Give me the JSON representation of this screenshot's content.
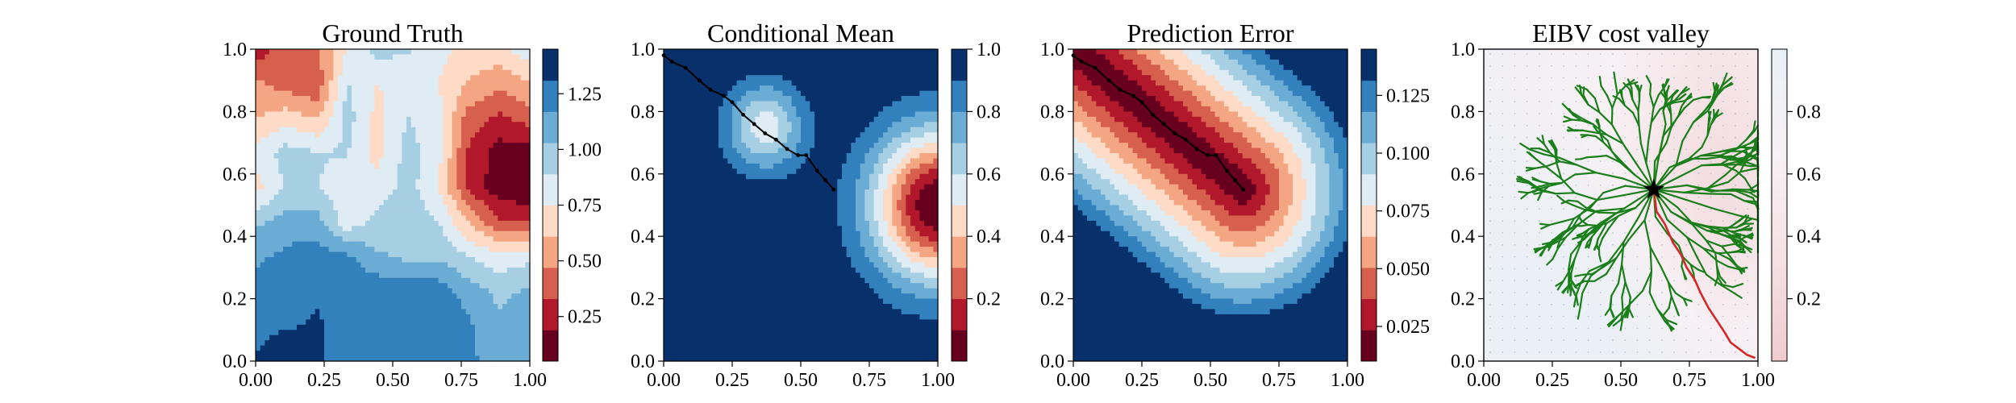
{
  "chart_data": [
    {
      "type": "heatmap",
      "title": "Ground Truth",
      "xlim": [
        0,
        1
      ],
      "ylim": [
        0,
        1
      ],
      "xticks": [
        "0.00",
        "0.25",
        "0.50",
        "0.75",
        "1.00"
      ],
      "yticks": [
        "0.0",
        "0.2",
        "0.4",
        "0.6",
        "0.8",
        "1.0"
      ],
      "colormap": "RdBu",
      "field_levels": [
        [
          0.22,
          0.45,
          0.45,
          0.75,
          0.95,
          0.9,
          0.8,
          0.7,
          0.72,
          0.85
        ],
        [
          0.5,
          0.4,
          0.35,
          0.9,
          0.75,
          0.8,
          0.75,
          0.6,
          0.5,
          0.6
        ],
        [
          0.6,
          0.7,
          0.6,
          0.95,
          0.7,
          0.9,
          0.8,
          0.4,
          0.3,
          0.4
        ],
        [
          0.8,
          0.95,
          0.9,
          0.9,
          0.7,
          0.95,
          0.8,
          0.3,
          0.12,
          0.1
        ],
        [
          0.7,
          0.9,
          0.9,
          0.8,
          0.8,
          0.95,
          0.75,
          0.3,
          0.1,
          0.05
        ],
        [
          1.0,
          1.1,
          1.1,
          0.8,
          0.95,
          1.0,
          0.9,
          0.6,
          0.35,
          0.35
        ],
        [
          1.15,
          1.2,
          1.25,
          1.2,
          1.05,
          1.0,
          1.0,
          0.9,
          0.8,
          0.85
        ],
        [
          1.2,
          1.25,
          1.3,
          1.3,
          1.28,
          1.3,
          1.25,
          1.1,
          1.0,
          1.05
        ],
        [
          1.25,
          1.3,
          1.32,
          1.28,
          1.25,
          1.3,
          1.3,
          1.2,
          1.05,
          1.1
        ],
        [
          1.32,
          1.45,
          1.35,
          1.2,
          1.3,
          1.3,
          1.3,
          1.2,
          1.1,
          1.1
        ]
      ],
      "colorbar": {
        "min": 0.05,
        "max": 1.45,
        "ticks": [
          "0.25",
          "0.50",
          "0.75",
          "1.00",
          "1.25"
        ],
        "tick_values": [
          0.25,
          0.5,
          0.75,
          1.0,
          1.25
        ]
      }
    },
    {
      "type": "heatmap",
      "title": "Conditional Mean",
      "xlim": [
        0,
        1
      ],
      "ylim": [
        0,
        1
      ],
      "xticks": [
        "0.00",
        "0.25",
        "0.50",
        "0.75",
        "1.00"
      ],
      "yticks": [
        "0.0",
        "0.2",
        "0.4",
        "0.6",
        "0.8",
        "1.0"
      ],
      "colormap": "RdBu",
      "bumps": [
        {
          "center": [
            0.37,
            0.75
          ],
          "sigma": 0.1,
          "depth": 0.45
        },
        {
          "center": [
            1.0,
            0.5
          ],
          "sigma": 0.17,
          "depth": 1.0
        }
      ],
      "background_value": 1.0,
      "path": {
        "x": [
          0.0,
          0.03,
          0.08,
          0.13,
          0.17,
          0.22,
          0.25,
          0.29,
          0.33,
          0.37,
          0.41,
          0.45,
          0.49,
          0.52,
          0.56,
          0.59,
          0.62
        ],
        "y": [
          0.98,
          0.96,
          0.94,
          0.9,
          0.87,
          0.85,
          0.83,
          0.79,
          0.76,
          0.73,
          0.71,
          0.68,
          0.66,
          0.66,
          0.61,
          0.58,
          0.55
        ]
      },
      "colorbar": {
        "min": 0.0,
        "max": 1.0,
        "ticks": [
          "0.2",
          "0.4",
          "0.6",
          "0.8",
          "1.0"
        ],
        "tick_values": [
          0.2,
          0.4,
          0.6,
          0.8,
          1.0
        ]
      }
    },
    {
      "type": "heatmap",
      "title": "Prediction Error",
      "xlim": [
        0,
        1
      ],
      "ylim": [
        0,
        1
      ],
      "xticks": [
        "0.00",
        "0.25",
        "0.50",
        "0.75",
        "1.00"
      ],
      "yticks": [
        "0.0",
        "0.2",
        "0.4",
        "0.6",
        "0.8",
        "1.0"
      ],
      "colormap": "RdBu",
      "segment": {
        "from": [
          0.0,
          1.0
        ],
        "to": [
          0.62,
          0.55
        ]
      },
      "min_value": 0.01,
      "max_value": 0.145,
      "error_scale": 0.45,
      "path": {
        "x": [
          0.0,
          0.03,
          0.08,
          0.13,
          0.17,
          0.22,
          0.25,
          0.29,
          0.33,
          0.37,
          0.41,
          0.45,
          0.49,
          0.52,
          0.56,
          0.59,
          0.62
        ],
        "y": [
          0.98,
          0.96,
          0.94,
          0.9,
          0.87,
          0.85,
          0.83,
          0.79,
          0.76,
          0.73,
          0.71,
          0.68,
          0.66,
          0.66,
          0.61,
          0.58,
          0.55
        ]
      },
      "colorbar": {
        "min": 0.01,
        "max": 0.145,
        "ticks": [
          "0.025",
          "0.050",
          "0.075",
          "0.100",
          "0.125"
        ],
        "tick_values": [
          0.025,
          0.05,
          0.075,
          0.1,
          0.125
        ]
      }
    },
    {
      "type": "heatmap",
      "title": "EIBV cost valley",
      "xlim": [
        0,
        1
      ],
      "ylim": [
        0,
        1
      ],
      "xticks": [
        "0.00",
        "0.25",
        "0.50",
        "0.75",
        "1.00"
      ],
      "yticks": [
        "0.0",
        "0.2",
        "0.4",
        "0.6",
        "0.8",
        "1.0"
      ],
      "colormap": "RdBu",
      "field_levels": [
        [
          0.82,
          0.78,
          0.75,
          0.72,
          0.7,
          0.62,
          0.55,
          0.45,
          0.42,
          0.5
        ],
        [
          0.8,
          0.78,
          0.74,
          0.7,
          0.66,
          0.58,
          0.48,
          0.4,
          0.38,
          0.46
        ],
        [
          0.84,
          0.8,
          0.76,
          0.72,
          0.66,
          0.56,
          0.44,
          0.35,
          0.32,
          0.4
        ],
        [
          0.86,
          0.84,
          0.82,
          0.78,
          0.7,
          0.56,
          0.42,
          0.3,
          0.28,
          0.36
        ],
        [
          0.88,
          0.86,
          0.84,
          0.8,
          0.72,
          0.58,
          0.44,
          0.3,
          0.26,
          0.34
        ],
        [
          0.9,
          0.9,
          0.88,
          0.86,
          0.8,
          0.66,
          0.5,
          0.36,
          0.3,
          0.38
        ],
        [
          0.92,
          0.92,
          0.92,
          0.9,
          0.86,
          0.76,
          0.6,
          0.46,
          0.4,
          0.46
        ],
        [
          0.94,
          0.94,
          0.94,
          0.93,
          0.9,
          0.82,
          0.7,
          0.58,
          0.52,
          0.58
        ],
        [
          0.95,
          0.95,
          0.95,
          0.95,
          0.93,
          0.88,
          0.78,
          0.68,
          0.62,
          0.66
        ],
        [
          0.96,
          0.96,
          0.96,
          0.96,
          0.95,
          0.92,
          0.85,
          0.76,
          0.72,
          0.74
        ]
      ],
      "start_marker": {
        "x": 0.62,
        "y": 0.55,
        "shape": "star",
        "color": "#000000"
      },
      "tree_color": "#1a7f1a",
      "route": {
        "color": "#d62728",
        "x": [
          0.62,
          0.63,
          0.66,
          0.69,
          0.72,
          0.74,
          0.77,
          0.79,
          0.82,
          0.85,
          0.88,
          0.9,
          0.93,
          0.96,
          0.99
        ],
        "y": [
          0.55,
          0.48,
          0.44,
          0.38,
          0.34,
          0.3,
          0.26,
          0.22,
          0.17,
          0.13,
          0.09,
          0.06,
          0.04,
          0.02,
          0.01
        ]
      },
      "colorbar": {
        "min": 0.0,
        "max": 1.0,
        "ticks": [
          "0.2",
          "0.4",
          "0.6",
          "0.8"
        ],
        "tick_values": [
          0.2,
          0.4,
          0.6,
          0.8
        ],
        "colormap": "Reds_r_light"
      }
    }
  ]
}
